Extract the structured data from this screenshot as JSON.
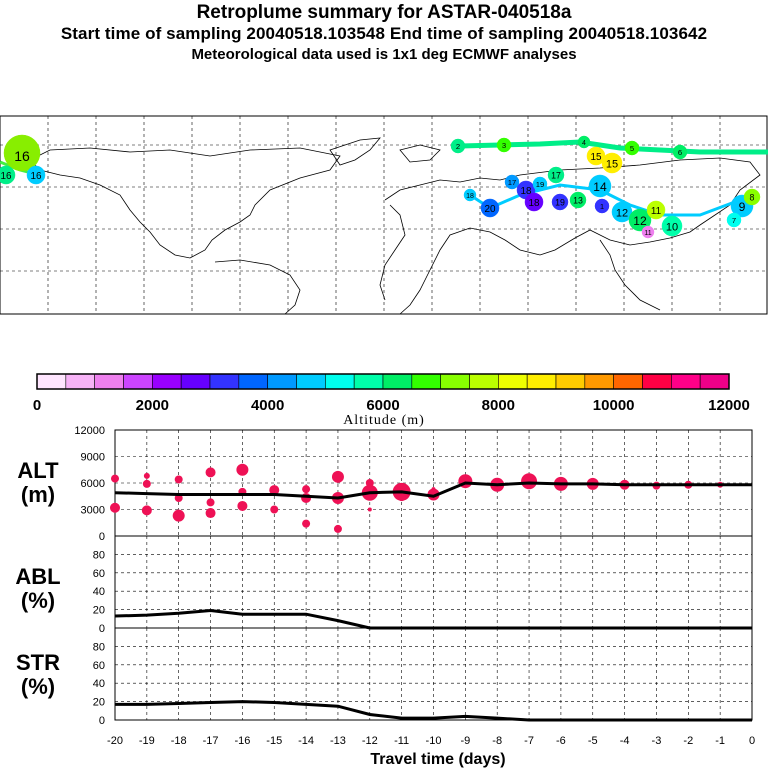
{
  "title": {
    "line1": "Retroplume summary for ASTAR-040518a",
    "line2": "Start time of sampling 20040518.103548     End time of sampling 20040518.103642",
    "line3": "Meteorological data used is 1x1 deg ECMWF analyses"
  },
  "colorbar": {
    "label": "Altitude (m)",
    "ticks": [
      "0",
      "2000",
      "4000",
      "6000",
      "8000",
      "10000",
      "12000"
    ],
    "colors": [
      "#ffe6ff",
      "#f7b3f7",
      "#ee80ee",
      "#cc44ff",
      "#9900ff",
      "#6600ff",
      "#3333ff",
      "#0066ff",
      "#0099ff",
      "#00ccff",
      "#00ffee",
      "#00ffaa",
      "#00ee66",
      "#33ff00",
      "#88ff00",
      "#bbff00",
      "#eeff00",
      "#ffee00",
      "#ffcc00",
      "#ff9900",
      "#ff6600",
      "#ff0044",
      "#ff0088",
      "#ee0088",
      "#cc0088",
      "#990088"
    ]
  },
  "map_labels": [
    "16",
    "16",
    "15",
    "15",
    "14",
    "13",
    "12",
    "11",
    "10",
    "9",
    "8",
    "7",
    "6",
    "5",
    "4",
    "3",
    "2",
    "1",
    "17",
    "18",
    "19",
    "20"
  ],
  "chart_data": [
    {
      "type": "line",
      "panel": "ALT",
      "ylabel_line1": "ALT",
      "ylabel_line2": "(m)",
      "ylim": [
        0,
        12000
      ],
      "yticks": [
        "0",
        "3000",
        "6000",
        "9000",
        "12000"
      ],
      "x": [
        -20,
        -19,
        -18,
        -17,
        -16,
        -15,
        -14,
        -13,
        -12,
        -11,
        -10,
        -9,
        -8,
        -7,
        -6,
        -5,
        -4,
        -3,
        -2,
        -1,
        0
      ],
      "values": [
        4900,
        4800,
        4700,
        4700,
        4700,
        4700,
        4500,
        4300,
        4900,
        5000,
        4500,
        6000,
        5800,
        6000,
        5900,
        5900,
        5800,
        5800,
        5800,
        5800,
        5800
      ],
      "markers": [
        {
          "x": -20,
          "y": 6500,
          "s": 4
        },
        {
          "x": -20,
          "y": 3200,
          "s": 5
        },
        {
          "x": -19,
          "y": 6800,
          "s": 3
        },
        {
          "x": -19,
          "y": 5900,
          "s": 4
        },
        {
          "x": -19,
          "y": 2900,
          "s": 5
        },
        {
          "x": -18,
          "y": 6400,
          "s": 4
        },
        {
          "x": -18,
          "y": 4300,
          "s": 4
        },
        {
          "x": -18,
          "y": 2300,
          "s": 6
        },
        {
          "x": -17,
          "y": 7200,
          "s": 5
        },
        {
          "x": -17,
          "y": 3800,
          "s": 4
        },
        {
          "x": -17,
          "y": 2600,
          "s": 5
        },
        {
          "x": -16,
          "y": 7500,
          "s": 6
        },
        {
          "x": -16,
          "y": 5000,
          "s": 4
        },
        {
          "x": -16,
          "y": 3400,
          "s": 5
        },
        {
          "x": -15,
          "y": 5200,
          "s": 5
        },
        {
          "x": -15,
          "y": 3000,
          "s": 4
        },
        {
          "x": -14,
          "y": 5300,
          "s": 4
        },
        {
          "x": -14,
          "y": 4300,
          "s": 5
        },
        {
          "x": -14,
          "y": 1400,
          "s": 4
        },
        {
          "x": -13,
          "y": 6700,
          "s": 6
        },
        {
          "x": -13,
          "y": 4300,
          "s": 6
        },
        {
          "x": -13,
          "y": 800,
          "s": 4
        },
        {
          "x": -12,
          "y": 6000,
          "s": 4
        },
        {
          "x": -12,
          "y": 4900,
          "s": 8
        },
        {
          "x": -12,
          "y": 3000,
          "s": 2
        },
        {
          "x": -11,
          "y": 5000,
          "s": 9
        },
        {
          "x": -11,
          "y": 4400,
          "s": 4
        },
        {
          "x": -10,
          "y": 4700,
          "s": 6
        },
        {
          "x": -10,
          "y": 5300,
          "s": 2
        },
        {
          "x": -9,
          "y": 6200,
          "s": 7
        },
        {
          "x": -8,
          "y": 5800,
          "s": 7
        },
        {
          "x": -7,
          "y": 6200,
          "s": 8
        },
        {
          "x": -6,
          "y": 5900,
          "s": 7
        },
        {
          "x": -5,
          "y": 5900,
          "s": 6
        },
        {
          "x": -4,
          "y": 5800,
          "s": 5
        },
        {
          "x": -3,
          "y": 5700,
          "s": 4
        },
        {
          "x": -2,
          "y": 5800,
          "s": 4
        },
        {
          "x": -1,
          "y": 5800,
          "s": 3
        }
      ]
    },
    {
      "type": "line",
      "panel": "ABL",
      "ylabel_line1": "ABL",
      "ylabel_line2": "(%)",
      "ylim": [
        0,
        100
      ],
      "yticks": [
        "0",
        "20",
        "40",
        "60",
        "80"
      ],
      "x": [
        -20,
        -19,
        -18,
        -17,
        -16,
        -15,
        -14,
        -13,
        -12,
        -11,
        -10,
        -9,
        -8,
        -7,
        -6,
        -5,
        -4,
        -3,
        -2,
        -1,
        0
      ],
      "values": [
        13,
        14,
        16,
        19,
        15,
        15,
        15,
        8,
        0,
        0,
        0,
        0,
        0,
        0,
        0,
        0,
        0,
        0,
        0,
        0,
        0
      ]
    },
    {
      "type": "line",
      "panel": "STR",
      "ylabel_line1": "STR",
      "ylabel_line2": "(%)",
      "ylim": [
        0,
        100
      ],
      "yticks": [
        "0",
        "20",
        "40",
        "60",
        "80"
      ],
      "x": [
        -20,
        -19,
        -18,
        -17,
        -16,
        -15,
        -14,
        -13,
        -12,
        -11,
        -10,
        -9,
        -8,
        -7,
        -6,
        -5,
        -4,
        -3,
        -2,
        -1,
        0
      ],
      "values": [
        17,
        17,
        18,
        19,
        20,
        19,
        17,
        15,
        6,
        2,
        2,
        4,
        2,
        0,
        0,
        0,
        0,
        0,
        0,
        0,
        0
      ],
      "xlabel": "Travel time (days)",
      "xticks": [
        "-20",
        "-19",
        "-18",
        "-17",
        "-16",
        "-15",
        "-14",
        "-13",
        "-12",
        "-11",
        "-10",
        "-9",
        "-8",
        "-7",
        "-6",
        "-5",
        "-4",
        "-3",
        "-2",
        "-1",
        "0"
      ]
    }
  ]
}
